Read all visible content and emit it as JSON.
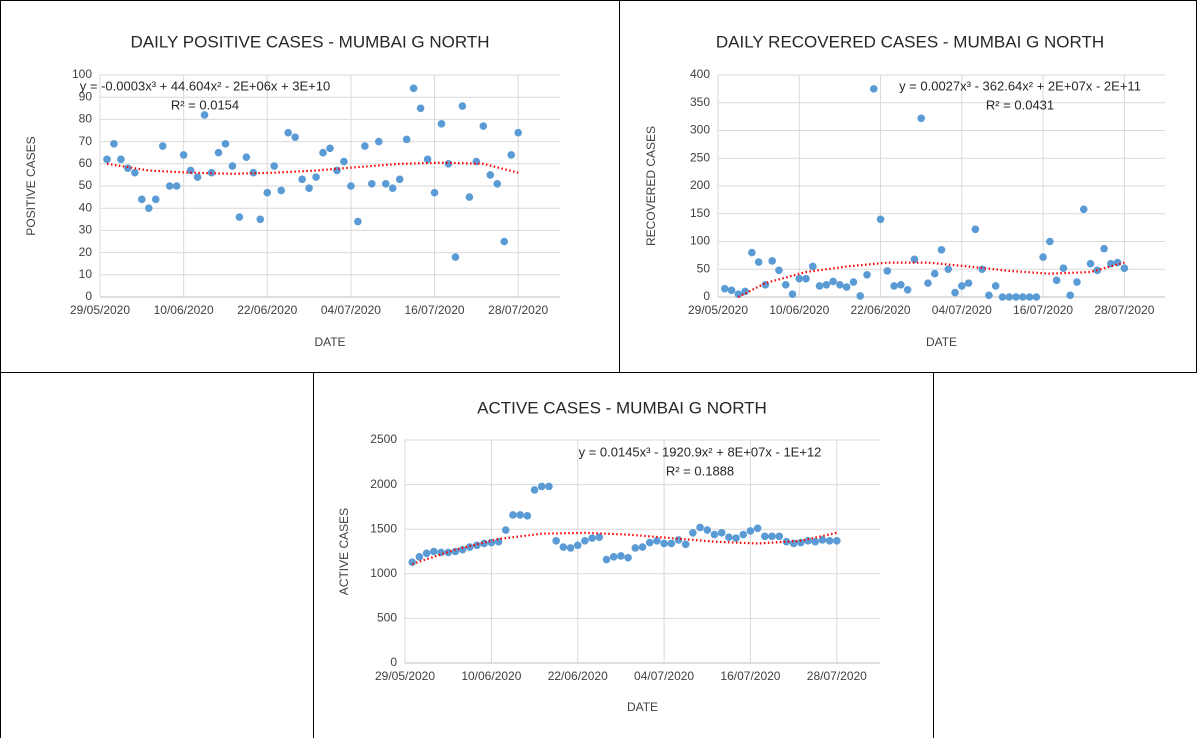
{
  "chart_data": [
    {
      "type": "scatter",
      "title": "DAILY POSITIVE CASES - MUMBAI G NORTH",
      "x_label": "DATE",
      "y_label": "POSITIVE CASES",
      "color": "#5b9bd5",
      "grid": true,
      "xlim": [
        "29/05/2020",
        "03/08/2020"
      ],
      "xticks": [
        "29/05/2020",
        "10/06/2020",
        "22/06/2020",
        "04/07/2020",
        "16/07/2020",
        "28/07/2020"
      ],
      "ylim": [
        0,
        100
      ],
      "yticks": [
        0,
        10,
        20,
        30,
        40,
        50,
        60,
        70,
        80,
        90,
        100
      ],
      "x": [
        "30/05/2020",
        "31/05/2020",
        "01/06/2020",
        "02/06/2020",
        "03/06/2020",
        "04/06/2020",
        "05/06/2020",
        "06/06/2020",
        "07/06/2020",
        "08/06/2020",
        "09/06/2020",
        "10/06/2020",
        "11/06/2020",
        "12/06/2020",
        "13/06/2020",
        "14/06/2020",
        "15/06/2020",
        "16/06/2020",
        "17/06/2020",
        "18/06/2020",
        "19/06/2020",
        "20/06/2020",
        "21/06/2020",
        "22/06/2020",
        "23/06/2020",
        "24/06/2020",
        "25/06/2020",
        "26/06/2020",
        "27/06/2020",
        "28/06/2020",
        "29/06/2020",
        "30/06/2020",
        "01/07/2020",
        "02/07/2020",
        "03/07/2020",
        "04/07/2020",
        "05/07/2020",
        "06/07/2020",
        "07/07/2020",
        "08/07/2020",
        "09/07/2020",
        "10/07/2020",
        "11/07/2020",
        "12/07/2020",
        "13/07/2020",
        "14/07/2020",
        "15/07/2020",
        "16/07/2020",
        "17/07/2020",
        "18/07/2020",
        "19/07/2020",
        "20/07/2020",
        "21/07/2020",
        "22/07/2020",
        "23/07/2020",
        "24/07/2020",
        "25/07/2020",
        "26/07/2020",
        "27/07/2020",
        "28/07/2020"
      ],
      "values": [
        62,
        69,
        62,
        58,
        56,
        44,
        40,
        44,
        68,
        50,
        50,
        64,
        57,
        54,
        82,
        56,
        65,
        69,
        59,
        36,
        63,
        56,
        35,
        47,
        59,
        48,
        74,
        72,
        53,
        49,
        54,
        65,
        67,
        57,
        61,
        50,
        34,
        68,
        51,
        70,
        51,
        49,
        53,
        71,
        94,
        85,
        62,
        47,
        78,
        60,
        18,
        86,
        45,
        61,
        77,
        55,
        51,
        25,
        64,
        74
      ],
      "trendline": {
        "color": "#ff0000",
        "equation": "y = -0.0003x³ + 44.604x² - 2E+06x + 3E+10",
        "r_squared": "R² = 0.0154",
        "x": [
          "30/05/2020",
          "05/06/2020",
          "11/06/2020",
          "17/06/2020",
          "23/06/2020",
          "29/06/2020",
          "05/07/2020",
          "11/07/2020",
          "17/07/2020",
          "23/07/2020",
          "28/07/2020"
        ],
        "values": [
          60,
          57,
          56,
          55.5,
          56,
          57,
          58.5,
          60,
          60.5,
          60,
          56
        ]
      }
    },
    {
      "type": "scatter",
      "title": "DAILY RECOVERED CASES - MUMBAI G NORTH",
      "x_label": "DATE",
      "y_label": "RECOVERED CASES",
      "color": "#5b9bd5",
      "grid": true,
      "xlim": [
        "29/05/2020",
        "03/08/2020"
      ],
      "xticks": [
        "29/05/2020",
        "10/06/2020",
        "22/06/2020",
        "04/07/2020",
        "16/07/2020",
        "28/07/2020"
      ],
      "ylim": [
        0,
        400
      ],
      "yticks": [
        0,
        50,
        100,
        150,
        200,
        250,
        300,
        350,
        400
      ],
      "x": [
        "30/05/2020",
        "31/05/2020",
        "01/06/2020",
        "02/06/2020",
        "03/06/2020",
        "04/06/2020",
        "05/06/2020",
        "06/06/2020",
        "07/06/2020",
        "08/06/2020",
        "09/06/2020",
        "10/06/2020",
        "11/06/2020",
        "12/06/2020",
        "13/06/2020",
        "14/06/2020",
        "15/06/2020",
        "16/06/2020",
        "17/06/2020",
        "18/06/2020",
        "19/06/2020",
        "20/06/2020",
        "21/06/2020",
        "22/06/2020",
        "23/06/2020",
        "24/06/2020",
        "25/06/2020",
        "26/06/2020",
        "27/06/2020",
        "28/06/2020",
        "29/06/2020",
        "30/06/2020",
        "01/07/2020",
        "02/07/2020",
        "03/07/2020",
        "04/07/2020",
        "05/07/2020",
        "06/07/2020",
        "07/07/2020",
        "08/07/2020",
        "09/07/2020",
        "10/07/2020",
        "11/07/2020",
        "12/07/2020",
        "13/07/2020",
        "14/07/2020",
        "15/07/2020",
        "16/07/2020",
        "17/07/2020",
        "18/07/2020",
        "19/07/2020",
        "20/07/2020",
        "21/07/2020",
        "22/07/2020",
        "23/07/2020",
        "24/07/2020",
        "25/07/2020",
        "26/07/2020",
        "27/07/2020",
        "28/07/2020"
      ],
      "values": [
        15,
        12,
        5,
        10,
        80,
        63,
        22,
        65,
        48,
        22,
        5,
        33,
        33,
        55,
        20,
        22,
        28,
        22,
        18,
        27,
        2,
        40,
        375,
        140,
        47,
        20,
        22,
        13,
        68,
        322,
        25,
        42,
        85,
        50,
        8,
        20,
        25,
        122,
        50,
        3,
        20,
        0,
        0,
        0,
        0,
        0,
        0,
        72,
        100,
        30,
        52,
        3,
        27,
        158,
        60,
        48,
        87,
        60,
        62,
        52
      ],
      "trendline": {
        "color": "#ff0000",
        "equation": "y = 0.0027x³ - 362.64x² + 2E+07x - 2E+11",
        "r_squared": "R² = 0.0431",
        "x": [
          "01/06/2020",
          "05/06/2020",
          "11/06/2020",
          "17/06/2020",
          "23/06/2020",
          "29/06/2020",
          "05/07/2020",
          "11/07/2020",
          "17/07/2020",
          "23/07/2020",
          "28/07/2020"
        ],
        "values": [
          0,
          25,
          45,
          55,
          62,
          62,
          55,
          47,
          42,
          45,
          62
        ]
      }
    },
    {
      "type": "scatter",
      "title": "ACTIVE CASES - MUMBAI G NORTH",
      "x_label": "DATE",
      "y_label": "ACTIVE CASES",
      "color": "#5b9bd5",
      "grid": true,
      "xlim": [
        "29/05/2020",
        "03/08/2020"
      ],
      "xticks": [
        "29/05/2020",
        "10/06/2020",
        "22/06/2020",
        "04/07/2020",
        "16/07/2020",
        "28/07/2020"
      ],
      "ylim": [
        0,
        2500
      ],
      "yticks": [
        0,
        500,
        1000,
        1500,
        2000,
        2500
      ],
      "x": [
        "30/05/2020",
        "31/05/2020",
        "01/06/2020",
        "02/06/2020",
        "03/06/2020",
        "04/06/2020",
        "05/06/2020",
        "06/06/2020",
        "07/06/2020",
        "08/06/2020",
        "09/06/2020",
        "10/06/2020",
        "11/06/2020",
        "12/06/2020",
        "13/06/2020",
        "14/06/2020",
        "15/06/2020",
        "16/06/2020",
        "17/06/2020",
        "18/06/2020",
        "19/06/2020",
        "20/06/2020",
        "21/06/2020",
        "22/06/2020",
        "23/06/2020",
        "24/06/2020",
        "25/06/2020",
        "26/06/2020",
        "27/06/2020",
        "28/06/2020",
        "29/06/2020",
        "30/06/2020",
        "01/07/2020",
        "02/07/2020",
        "03/07/2020",
        "04/07/2020",
        "05/07/2020",
        "06/07/2020",
        "07/07/2020",
        "08/07/2020",
        "09/07/2020",
        "10/07/2020",
        "11/07/2020",
        "12/07/2020",
        "13/07/2020",
        "14/07/2020",
        "15/07/2020",
        "16/07/2020",
        "17/07/2020",
        "18/07/2020",
        "19/07/2020",
        "20/07/2020",
        "21/07/2020",
        "22/07/2020",
        "23/07/2020",
        "24/07/2020",
        "25/07/2020",
        "26/07/2020",
        "27/07/2020",
        "28/07/2020"
      ],
      "values": [
        1130,
        1190,
        1230,
        1250,
        1240,
        1240,
        1250,
        1270,
        1300,
        1320,
        1340,
        1350,
        1360,
        1490,
        1660,
        1660,
        1650,
        1940,
        1980,
        1980,
        1370,
        1300,
        1290,
        1320,
        1370,
        1400,
        1410,
        1160,
        1190,
        1200,
        1180,
        1290,
        1300,
        1350,
        1370,
        1340,
        1340,
        1380,
        1330,
        1460,
        1520,
        1490,
        1440,
        1460,
        1410,
        1400,
        1440,
        1480,
        1510,
        1420,
        1420,
        1420,
        1360,
        1340,
        1350,
        1370,
        1360,
        1380,
        1370,
        1370
      ],
      "trendline": {
        "color": "#ff0000",
        "equation": "y = 0.0145x³ - 1920.9x² + 8E+07x - 1E+12",
        "r_squared": "R² = 0.1888",
        "x": [
          "30/05/2020",
          "05/06/2020",
          "11/06/2020",
          "17/06/2020",
          "23/06/2020",
          "29/06/2020",
          "05/07/2020",
          "11/07/2020",
          "17/07/2020",
          "23/07/2020",
          "28/07/2020"
        ],
        "values": [
          1110,
          1270,
          1390,
          1450,
          1460,
          1440,
          1400,
          1360,
          1340,
          1370,
          1460
        ]
      }
    }
  ]
}
